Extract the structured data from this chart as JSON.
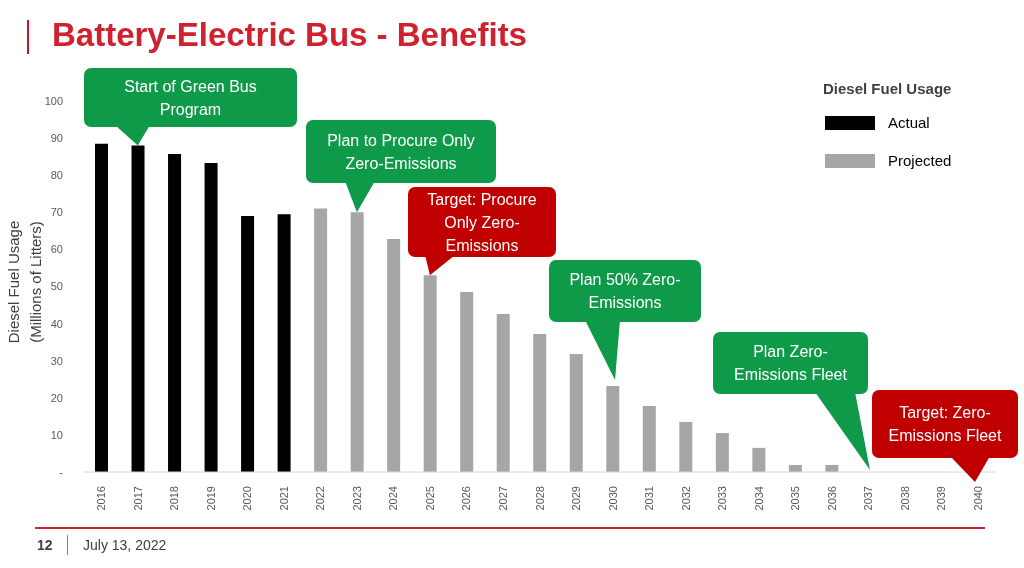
{
  "chart_data": {
    "type": "bar",
    "title": "Battery-Electric Bus - Benefits",
    "ylabel": "Diesel Fuel Usage (Millions of Litters)",
    "legend_title": "Diesel Fuel Usage",
    "legend": "top right",
    "categories": [
      "2016",
      "2017",
      "2018",
      "2019",
      "2020",
      "2021",
      "2022",
      "2023",
      "2024",
      "2025",
      "2026",
      "2027",
      "2028",
      "2029",
      "2030",
      "2031",
      "2032",
      "2033",
      "2034",
      "2035",
      "2036",
      "2037",
      "2038",
      "2039",
      "2040"
    ],
    "series": [
      {
        "name": "Actual",
        "color": "#000000",
        "values": [
          88.5,
          88,
          85.7,
          83.3,
          69,
          69.5,
          null,
          null,
          null,
          null,
          null,
          null,
          null,
          null,
          null,
          null,
          null,
          null,
          null,
          null,
          null,
          null,
          null,
          null,
          null
        ]
      },
      {
        "name": "Projected",
        "color": "#a6a6a6",
        "values": [
          null,
          null,
          null,
          null,
          null,
          null,
          71,
          70,
          62.8,
          53,
          48.5,
          42.6,
          37.2,
          31.8,
          23.2,
          17.8,
          13.5,
          10.5,
          6.5,
          1.9,
          1.9,
          0,
          0,
          0,
          0
        ]
      }
    ],
    "ylim": [
      0,
      100
    ],
    "yticks": [
      {
        "value": 0,
        "label": "-"
      },
      10,
      20,
      30,
      40,
      50,
      60,
      70,
      80,
      90,
      100
    ],
    "grid": false,
    "annotations": [
      {
        "text": "Start of Green Bus Program",
        "x": "2017",
        "y": 88
      },
      {
        "text": "Plan to Procure Only Zero-Emissions",
        "x": "2023",
        "y": 70
      },
      {
        "text": "Target: Procure Only Zero-Emissions",
        "x": "2025",
        "y": 53
      },
      "Plan 50% Zero-Emissions",
      "Plan Zero-Emissions Fleet",
      "Target: Zero-Emissions Fleet",
      "12",
      "July 13, 2022"
    ]
  }
}
